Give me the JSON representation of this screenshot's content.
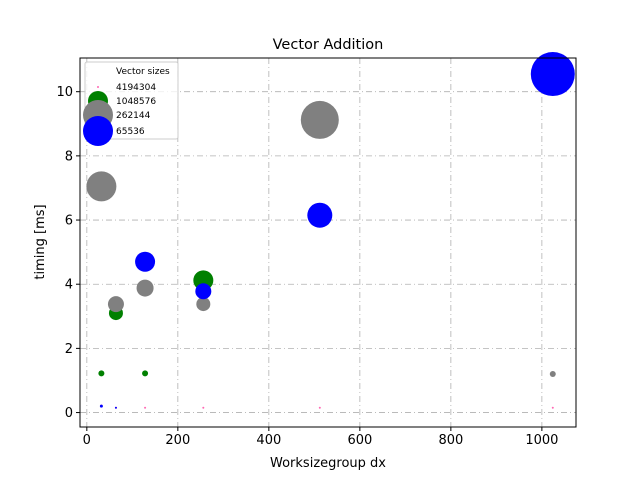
{
  "chart_data": {
    "type": "scatter",
    "title": "Vector Addition",
    "xlabel": "Worksizegroup dx",
    "ylabel": "timing [ms]",
    "xlim": [
      -15,
      1075
    ],
    "ylim": [
      -0.45,
      11.05
    ],
    "xticks": [
      0,
      200,
      400,
      600,
      800,
      1000
    ],
    "yticks": [
      0,
      2,
      4,
      6,
      8,
      10
    ],
    "grid": true,
    "legend": {
      "title": "Vector sizes",
      "placement": "upper-left"
    },
    "series": [
      {
        "name": "4194304",
        "color": "#ff69b4",
        "points": [
          {
            "x": 32,
            "y": 0.22,
            "size": 2
          },
          {
            "x": 64,
            "y": 0.15,
            "size": 2
          },
          {
            "x": 128,
            "y": 0.15,
            "size": 2
          },
          {
            "x": 256,
            "y": 0.15,
            "size": 2
          },
          {
            "x": 512,
            "y": 0.15,
            "size": 2
          },
          {
            "x": 1024,
            "y": 0.15,
            "size": 2
          }
        ]
      },
      {
        "name": "1048576",
        "color": "#008000",
        "points": [
          {
            "x": 32,
            "y": 1.22,
            "size": 6
          },
          {
            "x": 64,
            "y": 3.1,
            "size": 14
          },
          {
            "x": 128,
            "y": 1.22,
            "size": 6
          },
          {
            "x": 256,
            "y": 4.12,
            "size": 20
          }
        ]
      },
      {
        "name": "262144",
        "color": "#808080",
        "points": [
          {
            "x": 32,
            "y": 7.05,
            "size": 30
          },
          {
            "x": 64,
            "y": 3.38,
            "size": 16
          },
          {
            "x": 128,
            "y": 3.88,
            "size": 17
          },
          {
            "x": 256,
            "y": 3.38,
            "size": 14
          },
          {
            "x": 512,
            "y": 9.12,
            "size": 38
          },
          {
            "x": 1024,
            "y": 1.2,
            "size": 6
          }
        ]
      },
      {
        "name": "65536",
        "color": "#0000ff",
        "points": [
          {
            "x": 32,
            "y": 0.2,
            "size": 3
          },
          {
            "x": 64,
            "y": 0.15,
            "size": 2
          },
          {
            "x": 128,
            "y": 4.7,
            "size": 20
          },
          {
            "x": 256,
            "y": 3.78,
            "size": 16
          },
          {
            "x": 512,
            "y": 6.15,
            "size": 25
          },
          {
            "x": 1024,
            "y": 10.55,
            "size": 44
          }
        ]
      }
    ],
    "legend_order": [
      "4194304",
      "1048576",
      "262144",
      "65536"
    ]
  }
}
